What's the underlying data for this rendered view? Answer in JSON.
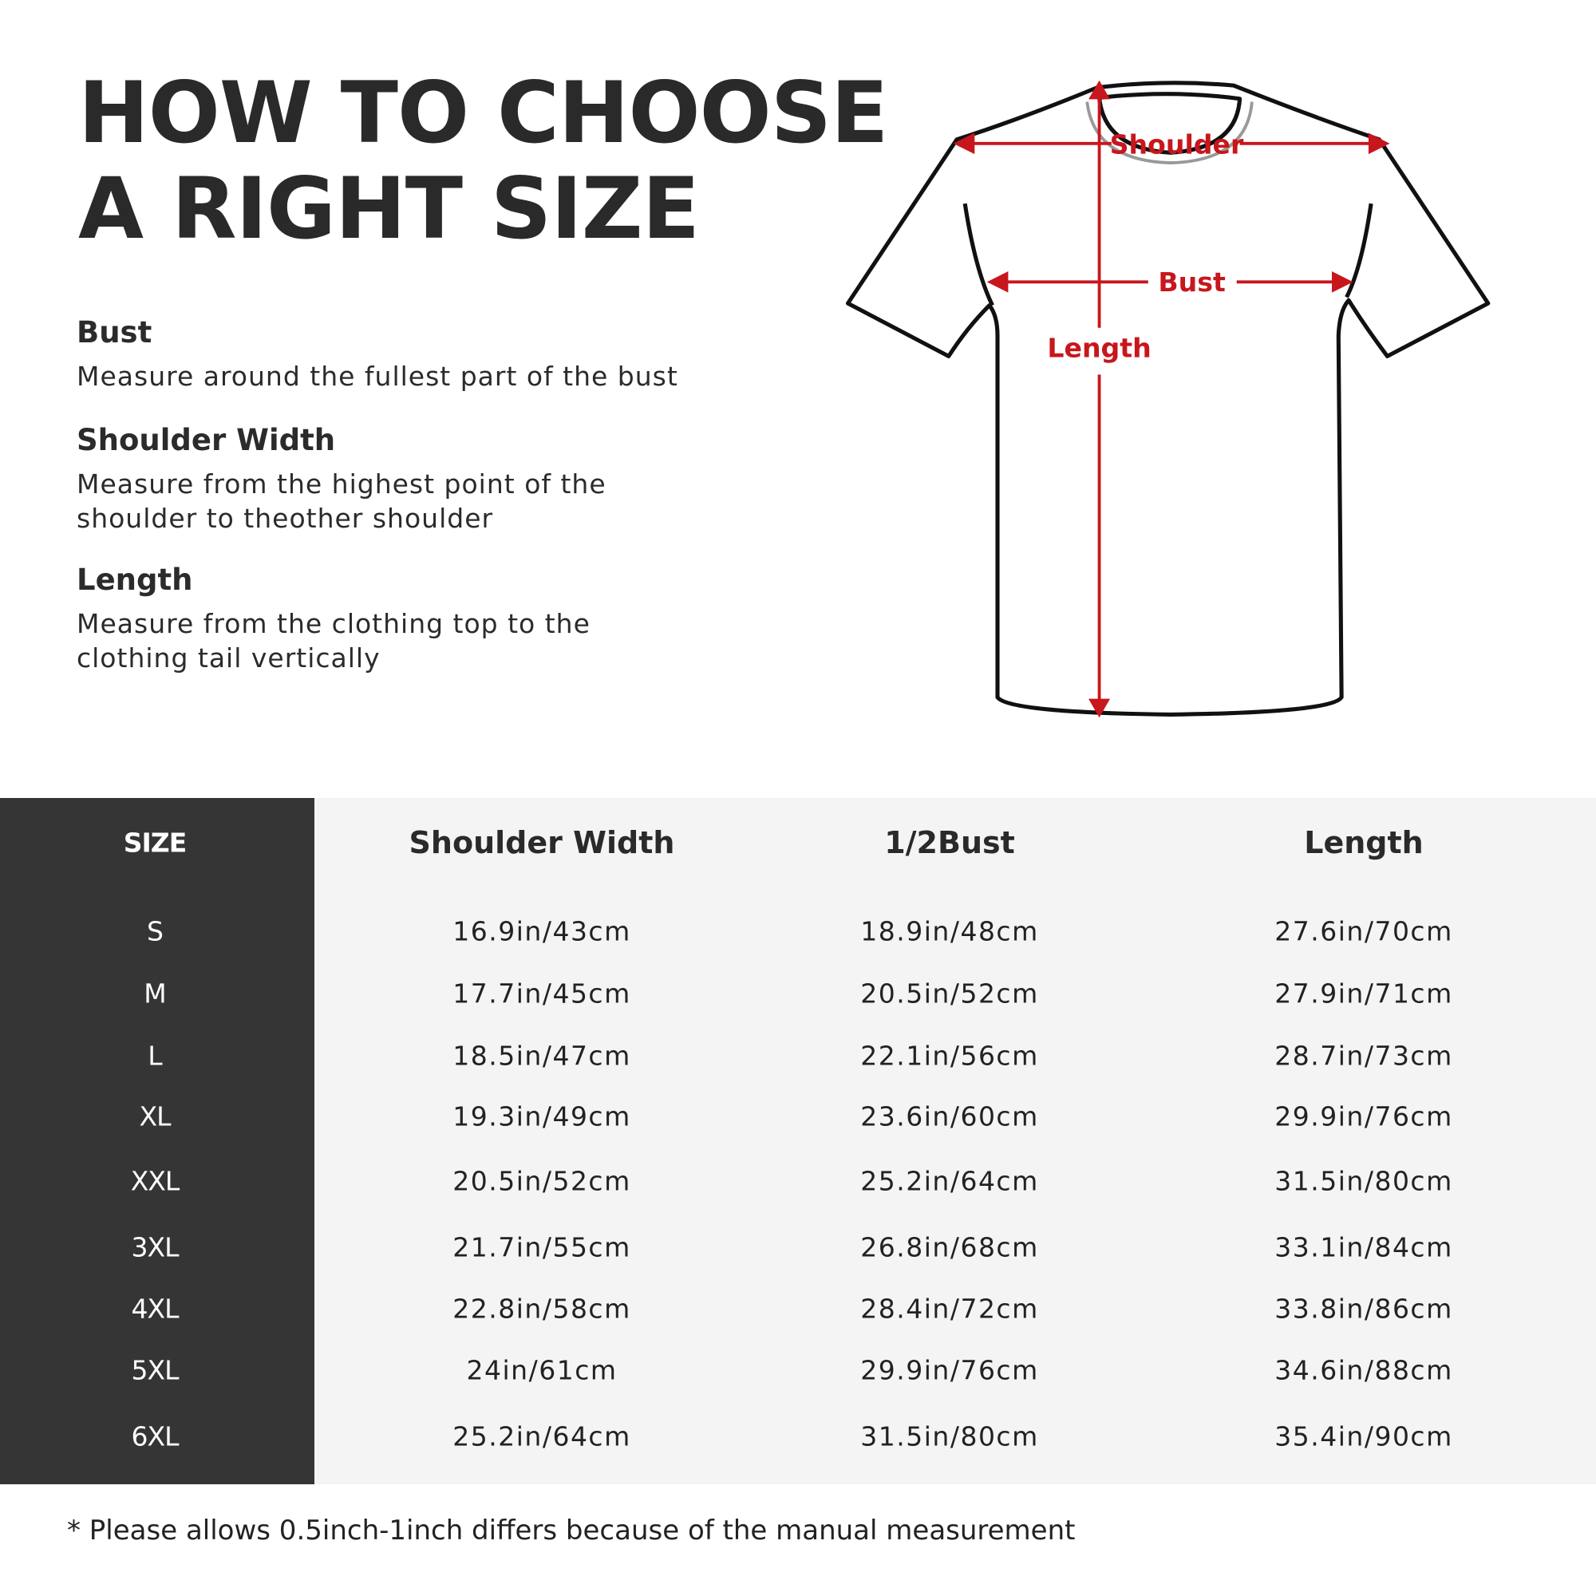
{
  "title": {
    "line1": "HOW TO CHOOSE",
    "line2": "A RIGHT SIZE"
  },
  "guide": [
    {
      "heading": "Bust",
      "desc": [
        "Measure around the fullest part of the bust"
      ]
    },
    {
      "heading": "Shoulder Width",
      "desc": [
        "Measure from the highest point of the",
        "shoulder to theother shoulder"
      ]
    },
    {
      "heading": "Length",
      "desc": [
        "Measure from the clothing top to the",
        "clothing tail vertically"
      ]
    }
  ],
  "diagram": {
    "shoulder": "Shoulder",
    "bust": "Bust",
    "length": "Length",
    "accent": "#c8161d"
  },
  "table": {
    "headers": [
      "SIZE",
      "Shoulder Width",
      "1/2Bust",
      "Length"
    ],
    "rows": [
      [
        "S",
        "16.9in/43cm",
        "18.9in/48cm",
        "27.6in/70cm"
      ],
      [
        "M",
        "17.7in/45cm",
        "20.5in/52cm",
        "27.9in/71cm"
      ],
      [
        "L",
        "18.5in/47cm",
        "22.1in/56cm",
        "28.7in/73cm"
      ],
      [
        "XL",
        "19.3in/49cm",
        "23.6in/60cm",
        "29.9in/76cm"
      ],
      [
        "XXL",
        "20.5in/52cm",
        "25.2in/64cm",
        "31.5in/80cm"
      ],
      [
        "3XL",
        "21.7in/55cm",
        "26.8in/68cm",
        "33.1in/84cm"
      ],
      [
        "4XL",
        "22.8in/58cm",
        "28.4in/72cm",
        "33.8in/86cm"
      ],
      [
        "5XL",
        "24in/61cm",
        "29.9in/76cm",
        "34.6in/88cm"
      ],
      [
        "6XL",
        "25.2in/64cm",
        "31.5in/80cm",
        "35.4in/90cm"
      ]
    ]
  },
  "footnote": "* Please allows 0.5inch-1inch differs because of the  manual measurement"
}
